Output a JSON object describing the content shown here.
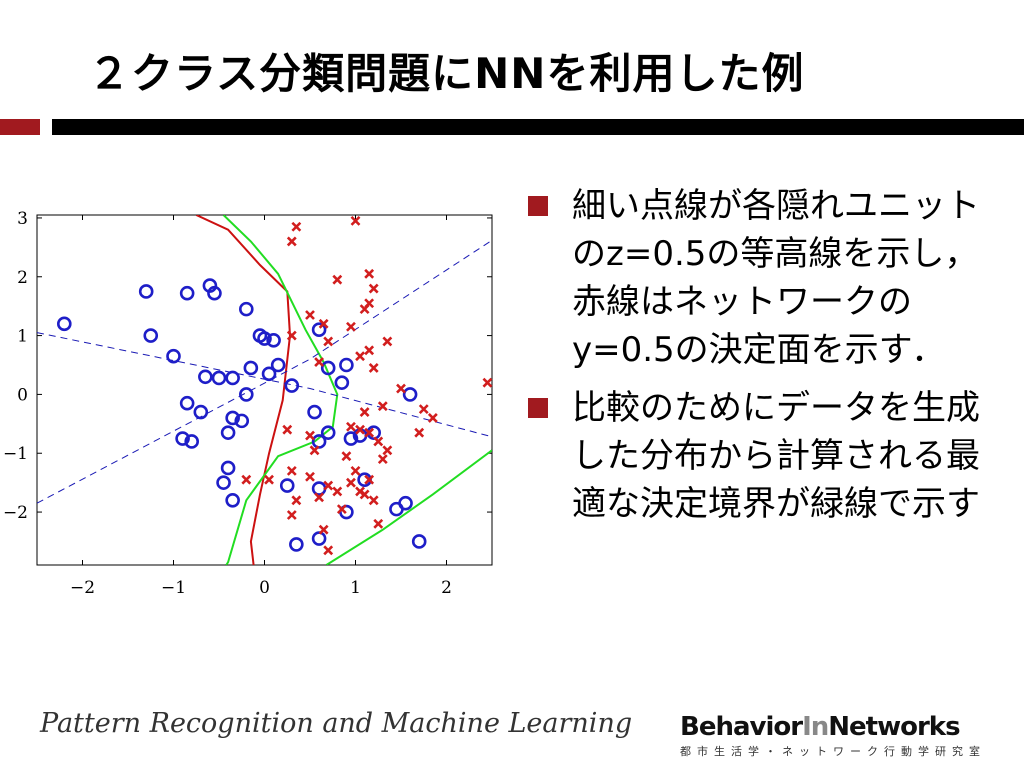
{
  "slide": {
    "title": "２クラス分類問題にNNを利用した例"
  },
  "colors": {
    "accent": "#a11a1f",
    "class_a": "#1e1ec8",
    "class_b": "#d21e1e",
    "optimal_boundary": "#22dd22",
    "nn_boundary": "#cc1111",
    "hidden_units": "#1a1ab4"
  },
  "chart_data": {
    "type": "scatter",
    "title": "",
    "xlabel": "",
    "ylabel": "",
    "xlim": [
      -2.5,
      2.5
    ],
    "ylim": [
      -2.9,
      3.05
    ],
    "xticks": [
      "−2",
      "−1",
      "0",
      "1",
      "2"
    ],
    "yticks": [
      "3",
      "2",
      "1",
      "0",
      "−1",
      "−2"
    ],
    "grid": false,
    "series": [
      {
        "marker": "circle",
        "color": "#1e1ec8",
        "points": [
          [
            -2.2,
            1.2
          ],
          [
            -1.3,
            1.75
          ],
          [
            -1.25,
            1.0
          ],
          [
            -0.85,
            1.72
          ],
          [
            -0.6,
            1.85
          ],
          [
            -0.55,
            1.72
          ],
          [
            -1.0,
            0.65
          ],
          [
            -0.65,
            0.3
          ],
          [
            -0.5,
            0.28
          ],
          [
            -0.35,
            0.28
          ],
          [
            -0.15,
            0.45
          ],
          [
            -0.05,
            1.0
          ],
          [
            0.0,
            0.95
          ],
          [
            -0.2,
            1.45
          ],
          [
            0.1,
            0.92
          ],
          [
            0.15,
            0.5
          ],
          [
            0.05,
            0.35
          ],
          [
            0.3,
            0.15
          ],
          [
            -0.2,
            0.0
          ],
          [
            -0.85,
            -0.15
          ],
          [
            -0.7,
            -0.3
          ],
          [
            -0.35,
            -0.4
          ],
          [
            -0.25,
            -0.45
          ],
          [
            -0.4,
            -0.65
          ],
          [
            -0.9,
            -0.75
          ],
          [
            -0.8,
            -0.8
          ],
          [
            -0.4,
            -1.25
          ],
          [
            -0.45,
            -1.5
          ],
          [
            -0.35,
            -1.8
          ],
          [
            0.25,
            -1.55
          ],
          [
            0.6,
            1.1
          ],
          [
            0.7,
            0.45
          ],
          [
            0.9,
            0.5
          ],
          [
            0.85,
            0.2
          ],
          [
            0.55,
            -0.3
          ],
          [
            0.6,
            -0.8
          ],
          [
            0.7,
            -0.65
          ],
          [
            0.95,
            -0.75
          ],
          [
            1.05,
            -0.7
          ],
          [
            1.2,
            -0.65
          ],
          [
            1.1,
            -1.45
          ],
          [
            0.6,
            -1.6
          ],
          [
            0.9,
            -2.0
          ],
          [
            0.35,
            -2.55
          ],
          [
            0.6,
            -2.45
          ],
          [
            1.45,
            -1.95
          ],
          [
            1.55,
            -1.85
          ],
          [
            1.7,
            -2.5
          ],
          [
            1.6,
            0.0
          ]
        ]
      },
      {
        "marker": "x",
        "color": "#d21e1e",
        "points": [
          [
            0.35,
            2.85
          ],
          [
            0.3,
            2.6
          ],
          [
            1.0,
            2.95
          ],
          [
            0.8,
            1.95
          ],
          [
            1.15,
            2.05
          ],
          [
            1.2,
            1.8
          ],
          [
            1.1,
            1.45
          ],
          [
            1.15,
            1.55
          ],
          [
            0.5,
            1.35
          ],
          [
            0.65,
            1.2
          ],
          [
            0.95,
            1.15
          ],
          [
            0.3,
            1.0
          ],
          [
            0.7,
            0.9
          ],
          [
            1.05,
            0.65
          ],
          [
            1.15,
            0.75
          ],
          [
            1.35,
            0.9
          ],
          [
            1.2,
            0.45
          ],
          [
            0.6,
            0.55
          ],
          [
            1.5,
            0.1
          ],
          [
            2.45,
            0.2
          ],
          [
            1.3,
            -0.2
          ],
          [
            1.75,
            -0.25
          ],
          [
            1.85,
            -0.4
          ],
          [
            1.7,
            -0.65
          ],
          [
            1.1,
            -0.3
          ],
          [
            0.95,
            -0.55
          ],
          [
            1.05,
            -0.6
          ],
          [
            1.15,
            -0.65
          ],
          [
            1.25,
            -0.8
          ],
          [
            1.35,
            -0.95
          ],
          [
            1.3,
            -1.1
          ],
          [
            0.25,
            -0.6
          ],
          [
            0.5,
            -0.7
          ],
          [
            0.55,
            -0.95
          ],
          [
            0.9,
            -1.05
          ],
          [
            1.0,
            -1.3
          ],
          [
            1.15,
            -1.45
          ],
          [
            0.3,
            -1.3
          ],
          [
            0.5,
            -1.4
          ],
          [
            0.7,
            -1.55
          ],
          [
            0.8,
            -1.65
          ],
          [
            0.95,
            -1.5
          ],
          [
            1.05,
            -1.65
          ],
          [
            0.35,
            -1.8
          ],
          [
            0.6,
            -1.75
          ],
          [
            0.85,
            -1.95
          ],
          [
            1.1,
            -1.7
          ],
          [
            1.2,
            -1.8
          ],
          [
            1.25,
            -2.2
          ],
          [
            0.3,
            -2.05
          ],
          [
            0.7,
            -2.65
          ],
          [
            0.65,
            -2.3
          ],
          [
            0.05,
            -1.45
          ],
          [
            -0.2,
            -1.45
          ]
        ]
      }
    ],
    "lines": [
      {
        "name": "nn_boundary",
        "color": "#cc1111",
        "style": "solid",
        "points": [
          [
            -0.75,
            3.05
          ],
          [
            -0.4,
            2.8
          ],
          [
            -0.05,
            2.2
          ],
          [
            0.25,
            1.75
          ],
          [
            0.28,
            1.0
          ],
          [
            0.2,
            -0.1
          ],
          [
            0.05,
            -1.0
          ],
          [
            -0.05,
            -1.7
          ],
          [
            -0.15,
            -2.5
          ],
          [
            -0.12,
            -2.9
          ]
        ]
      },
      {
        "name": "optimal_boundary",
        "color": "#22dd22",
        "style": "solid",
        "points": [
          [
            -0.45,
            3.05
          ],
          [
            -0.15,
            2.6
          ],
          [
            0.15,
            2.05
          ],
          [
            0.45,
            1.1
          ],
          [
            0.65,
            0.55
          ],
          [
            0.8,
            0.0
          ],
          [
            0.75,
            -0.55
          ],
          [
            0.55,
            -0.8
          ],
          [
            0.15,
            -1.05
          ],
          [
            -0.2,
            -1.8
          ],
          [
            -0.4,
            -2.85
          ],
          [
            -0.42,
            -2.9
          ]
        ]
      },
      {
        "name": "optimal_boundary_right",
        "color": "#22dd22",
        "style": "solid",
        "points": [
          [
            0.68,
            -2.9
          ],
          [
            1.3,
            -2.3
          ],
          [
            1.85,
            -1.7
          ],
          [
            2.5,
            -0.95
          ]
        ]
      },
      {
        "name": "hidden_unit",
        "color": "#1a1ab4",
        "style": "dashed",
        "points": [
          [
            -2.5,
            1.05
          ],
          [
            0.5,
            0.1
          ],
          [
            2.5,
            -0.72
          ]
        ]
      },
      {
        "name": "hidden_unit",
        "color": "#1a1ab4",
        "style": "dashed",
        "points": [
          [
            -2.5,
            -1.85
          ],
          [
            0.5,
            0.6
          ],
          [
            2.5,
            2.62
          ]
        ]
      }
    ]
  },
  "bullets": [
    {
      "text": "細い点線が各隠れユニットのz=0.5の等高線を示し，赤線はネットワークのy=0.5の決定面を示す．"
    },
    {
      "text": "比較のためにデータを生成した分布から計算される最適な決定境界が緑線で示す"
    }
  ],
  "footer": {
    "course": "Pattern Recognition and Machine Learning",
    "logo_part1": "Behavior",
    "logo_part2": "In",
    "logo_part3": "Networks",
    "logo_sub": "都市生活学・ネットワーク行動学研究室"
  }
}
